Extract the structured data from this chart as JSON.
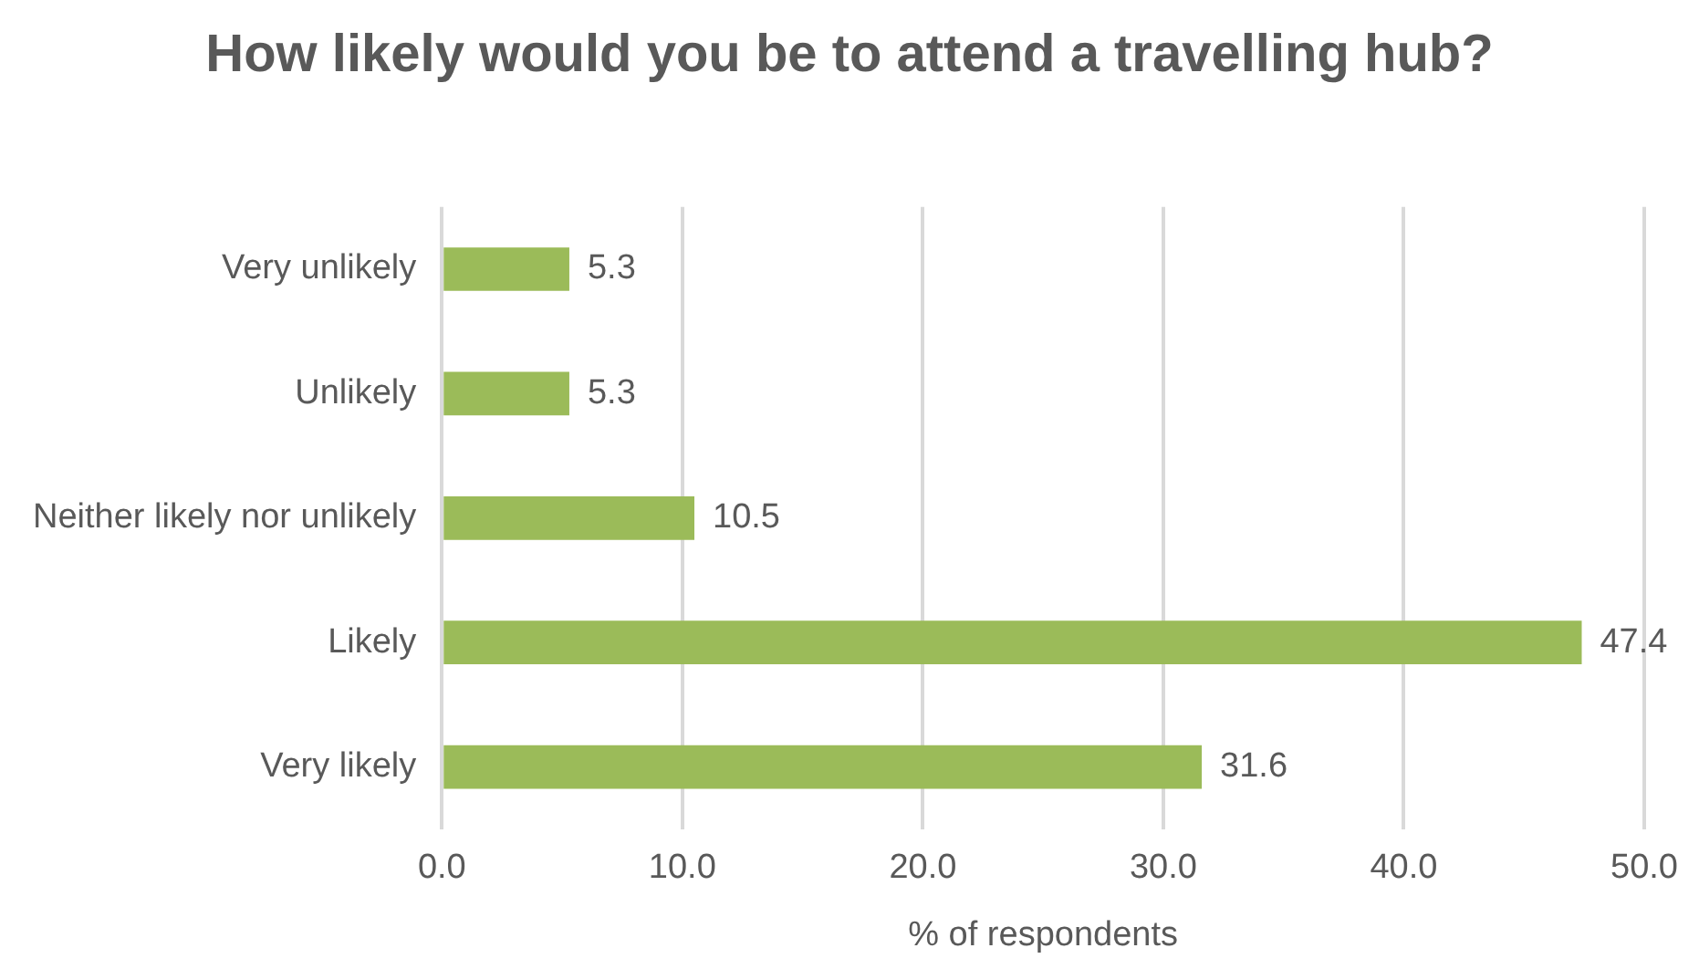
{
  "chart_data": {
    "type": "bar",
    "orientation": "horizontal",
    "title": "How likely would you be to attend a travelling hub?",
    "xlabel": "% of respondents",
    "categories": [
      "Very unlikely",
      "Unlikely",
      "Neither likely nor unlikely",
      "Likely",
      "Very likely"
    ],
    "values": [
      5.3,
      5.3,
      10.5,
      47.4,
      31.6
    ],
    "color": "#9bbb59",
    "xlim": [
      0,
      50
    ],
    "xticks": [
      {
        "value": 0,
        "label": "0.0"
      },
      {
        "value": 10,
        "label": "10.0"
      },
      {
        "value": 20,
        "label": "20.0"
      },
      {
        "value": 30,
        "label": "30.0"
      },
      {
        "value": 40,
        "label": "40.0"
      },
      {
        "value": 50,
        "label": "50.0"
      }
    ],
    "grid": "x",
    "data_labels": true,
    "legend": false
  }
}
